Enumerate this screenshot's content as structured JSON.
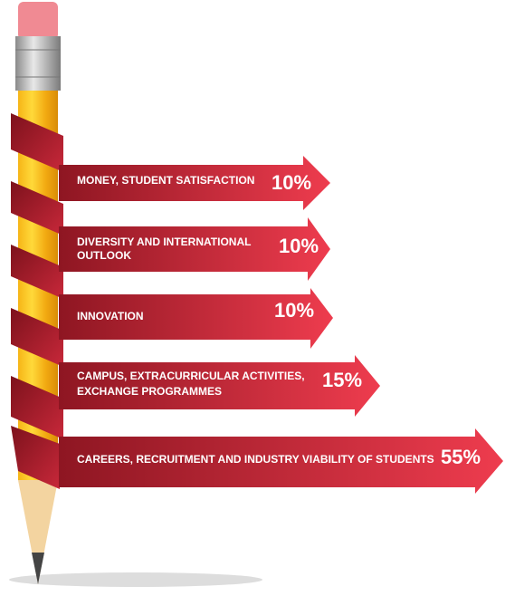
{
  "items": [
    {
      "label": [
        "MONEY, STUDENT SATISFACTION"
      ],
      "value": "10%"
    },
    {
      "label": [
        "DIVERSITY AND INTERNATIONAL",
        "OUTLOOK"
      ],
      "value": "10%"
    },
    {
      "label": [
        "INNOVATION"
      ],
      "value": "10%"
    },
    {
      "label": [
        "CAMPUS, EXTRACURRICULAR ACTIVITIES,",
        "EXCHANGE PROGRAMMES"
      ],
      "value": "15%"
    },
    {
      "label": [
        "CAREERS, RECRUITMENT AND INDUSTRY VIABILITY OF STUDENTS"
      ],
      "value": "55%"
    }
  ]
}
